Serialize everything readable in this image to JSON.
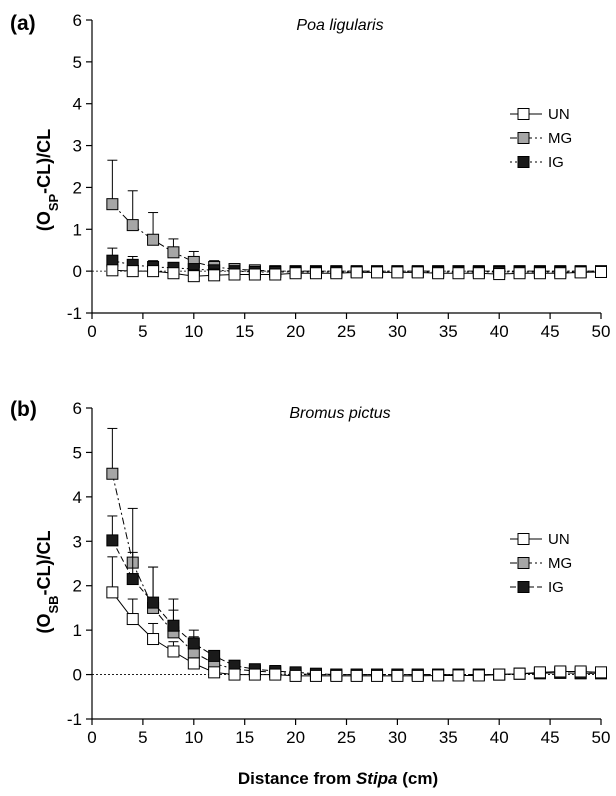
{
  "figure": {
    "xlabel_prefix": "Distance from ",
    "xlabel_italic": "Stipa",
    "xlabel_suffix": " (cm)"
  },
  "chart_data": [
    {
      "type": "line",
      "panel_label": "(a)",
      "title": "Poa ligularis",
      "ylabel_main": "(O",
      "ylabel_sub": "SP",
      "ylabel_rest": "-CL)/CL",
      "xlim": [
        0,
        50
      ],
      "ylim": [
        -1,
        6
      ],
      "xticks": [
        0,
        5,
        10,
        15,
        20,
        25,
        30,
        35,
        40,
        45,
        50
      ],
      "yticks": [
        -1,
        0,
        1,
        2,
        3,
        4,
        5,
        6
      ],
      "reference_line": 0,
      "legend_position": "right",
      "x": [
        2,
        4,
        6,
        8,
        10,
        12,
        14,
        16,
        18,
        20,
        22,
        24,
        26,
        28,
        30,
        32,
        34,
        36,
        38,
        40,
        42,
        44,
        46,
        48,
        50
      ],
      "series": [
        {
          "name": "MG",
          "fill": "#a6a6a6",
          "line": "dashdot",
          "values": [
            1.6,
            1.1,
            0.75,
            0.45,
            0.22,
            0.1,
            0.05,
            0.02,
            0,
            0,
            0,
            0,
            0,
            0,
            0,
            0,
            0,
            0,
            0,
            0,
            0,
            0,
            0,
            0,
            0
          ],
          "err": [
            1.05,
            0.82,
            0.65,
            0.32,
            0.25,
            0.15,
            0.08,
            0.05,
            0.04,
            0.04,
            0.03,
            0.03,
            0.03,
            0.03,
            0.03,
            0.03,
            0.03,
            0.03,
            0.03,
            0.03,
            0.03,
            0.03,
            0.03,
            0.03,
            0.03
          ]
        },
        {
          "name": "IG",
          "fill": "#1a1a1a",
          "line": "dotted",
          "values": [
            0.25,
            0.15,
            0.1,
            0.08,
            0.05,
            0.02,
            0,
            -0.02,
            -0.02,
            -0.02,
            -0.02,
            -0.02,
            -0.02,
            -0.02,
            -0.02,
            -0.02,
            -0.02,
            -0.02,
            -0.02,
            -0.02,
            -0.02,
            -0.02,
            -0.02,
            -0.02,
            -0.02
          ],
          "err": [
            0.3,
            0.2,
            0.15,
            0.12,
            0.1,
            0.08,
            0.06,
            0.05,
            0.04,
            0.04,
            0.03,
            0.03,
            0.03,
            0.03,
            0.03,
            0.03,
            0.03,
            0.03,
            0.03,
            0.03,
            0.03,
            0.03,
            0.03,
            0.03,
            0.03
          ]
        },
        {
          "name": "UN",
          "fill": "#ffffff",
          "line": "solid",
          "values": [
            0.02,
            0.0,
            0.0,
            -0.05,
            -0.12,
            -0.1,
            -0.08,
            -0.08,
            -0.08,
            -0.05,
            -0.05,
            -0.05,
            -0.03,
            -0.03,
            -0.03,
            -0.03,
            -0.05,
            -0.05,
            -0.05,
            -0.07,
            -0.05,
            -0.05,
            -0.05,
            -0.03,
            -0.02
          ],
          "err": [
            0.05,
            0.06,
            0.08,
            0.1,
            0.15,
            0.15,
            0.1,
            0.08,
            0.06,
            0.05,
            0.05,
            0.04,
            0.04,
            0.04,
            0.04,
            0.04,
            0.04,
            0.04,
            0.04,
            0.04,
            0.04,
            0.04,
            0.04,
            0.04,
            0.04
          ]
        }
      ]
    },
    {
      "type": "line",
      "panel_label": "(b)",
      "title": "Bromus pictus",
      "ylabel_main": "(O",
      "ylabel_sub": "SB",
      "ylabel_rest": "-CL)/CL",
      "xlim": [
        0,
        50
      ],
      "ylim": [
        -1,
        6
      ],
      "xticks": [
        0,
        5,
        10,
        15,
        20,
        25,
        30,
        35,
        40,
        45,
        50
      ],
      "yticks": [
        -1,
        0,
        1,
        2,
        3,
        4,
        5,
        6
      ],
      "reference_line": 0,
      "legend_position": "right",
      "x": [
        2,
        4,
        6,
        8,
        10,
        12,
        14,
        16,
        18,
        20,
        22,
        24,
        26,
        28,
        30,
        32,
        34,
        36,
        38,
        40,
        42,
        44,
        46,
        48,
        50
      ],
      "series": [
        {
          "name": "MG",
          "fill": "#a6a6a6",
          "line": "dashdot",
          "values": [
            4.52,
            2.52,
            1.5,
            0.95,
            0.5,
            0.25,
            0.12,
            0.08,
            0.05,
            0.02,
            0,
            0,
            0,
            0,
            0,
            0,
            0,
            0,
            0,
            0,
            0.02,
            0.03,
            0.04,
            0.03,
            0.03
          ],
          "err": [
            1.02,
            1.22,
            0.92,
            0.5,
            0.35,
            0.15,
            0.08,
            0.05,
            0.05,
            0.04,
            0.03,
            0.03,
            0.03,
            0.03,
            0.03,
            0.03,
            0.03,
            0.03,
            0.03,
            0.03,
            0.04,
            0.04,
            0.04,
            0.04,
            0.04
          ]
        },
        {
          "name": "IG",
          "fill": "#1a1a1a",
          "line": "dashed",
          "values": [
            3.02,
            2.15,
            1.62,
            1.1,
            0.7,
            0.42,
            0.2,
            0.12,
            0.08,
            0.05,
            0.02,
            0,
            0,
            0,
            0,
            0,
            0,
            0,
            0,
            0,
            0.02,
            0.03,
            0.04,
            0.03,
            0.03
          ],
          "err": [
            0.55,
            0.6,
            0.8,
            0.6,
            0.3,
            0.12,
            0.08,
            0.05,
            0.04,
            0.04,
            0.03,
            0.03,
            0.03,
            0.03,
            0.03,
            0.03,
            0.03,
            0.03,
            0.03,
            0.03,
            0.03,
            0.03,
            0.03,
            0.03,
            0.03
          ]
        },
        {
          "name": "UN",
          "fill": "#ffffff",
          "line": "solid",
          "values": [
            1.85,
            1.25,
            0.8,
            0.52,
            0.25,
            0.05,
            0,
            0,
            0,
            -0.03,
            -0.03,
            -0.03,
            -0.03,
            -0.03,
            -0.03,
            -0.03,
            -0.02,
            -0.02,
            -0.02,
            0,
            0.02,
            0.05,
            0.07,
            0.07,
            0.05
          ],
          "err": [
            0.8,
            0.45,
            0.35,
            0.22,
            0.12,
            0.08,
            0.05,
            0.04,
            0.04,
            0.03,
            0.03,
            0.03,
            0.03,
            0.03,
            0.03,
            0.03,
            0.03,
            0.03,
            0.03,
            0.03,
            0.03,
            0.04,
            0.04,
            0.04,
            0.04
          ]
        }
      ]
    }
  ]
}
